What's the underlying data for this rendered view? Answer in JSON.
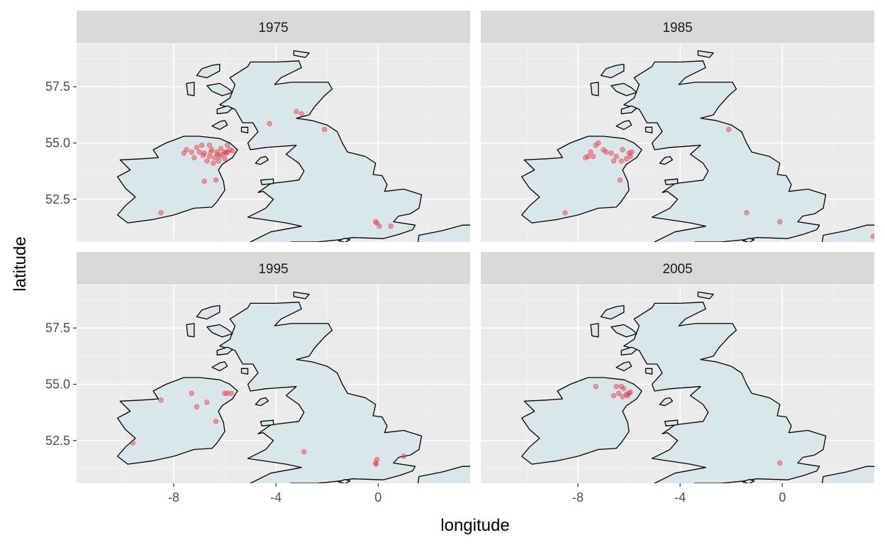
{
  "chart_data": {
    "type": "scatter",
    "facet_by": "year",
    "xlabel": "longitude",
    "ylabel": "latitude",
    "xlim": [
      -11.8,
      3.6
    ],
    "ylim": [
      50.6,
      59.4
    ],
    "xticks": [
      -8,
      -4,
      0
    ],
    "xtick_labels": [
      "-8",
      "-4",
      "0"
    ],
    "yticks": [
      52.5,
      55.0,
      57.5
    ],
    "ytick_labels": [
      "52.5",
      "55.0",
      "57.5"
    ],
    "grid": true,
    "point_color": "#e8333c",
    "panels": [
      {
        "label": "1975",
        "points": [
          [
            -6.5,
            54.7
          ],
          [
            -6.3,
            54.6
          ],
          [
            -6.0,
            54.6
          ],
          [
            -5.9,
            54.6
          ],
          [
            -5.95,
            54.55
          ],
          [
            -6.1,
            54.5
          ],
          [
            -6.2,
            54.4
          ],
          [
            -6.4,
            54.35
          ],
          [
            -6.6,
            54.4
          ],
          [
            -6.8,
            54.55
          ],
          [
            -7.0,
            54.6
          ],
          [
            -7.3,
            54.6
          ],
          [
            -7.5,
            54.7
          ],
          [
            -7.6,
            54.55
          ],
          [
            -7.1,
            54.8
          ],
          [
            -6.9,
            54.9
          ],
          [
            -6.6,
            54.9
          ],
          [
            -6.3,
            54.5
          ],
          [
            -6.7,
            54.2
          ],
          [
            -6.45,
            54.1
          ],
          [
            -6.25,
            54.2
          ],
          [
            -6.0,
            54.3
          ],
          [
            -5.8,
            54.7
          ],
          [
            -5.7,
            54.65
          ],
          [
            -6.55,
            54.6
          ],
          [
            -6.85,
            54.45
          ],
          [
            -7.2,
            54.35
          ],
          [
            -5.9,
            54.9
          ],
          [
            -6.15,
            54.75
          ],
          [
            -6.35,
            53.35
          ],
          [
            -6.8,
            53.3
          ],
          [
            -8.5,
            51.9
          ],
          [
            -4.25,
            55.86
          ],
          [
            -3.2,
            56.4
          ],
          [
            -3.0,
            56.3
          ],
          [
            -2.1,
            55.6
          ],
          [
            -0.1,
            51.5
          ],
          [
            -0.05,
            51.45
          ],
          [
            0.05,
            51.3
          ],
          [
            0.5,
            51.3
          ]
        ]
      },
      {
        "label": "1985",
        "points": [
          [
            -7.3,
            54.9
          ],
          [
            -7.2,
            55.0
          ],
          [
            -7.5,
            54.6
          ],
          [
            -7.6,
            54.4
          ],
          [
            -7.7,
            54.35
          ],
          [
            -6.9,
            54.6
          ],
          [
            -6.7,
            54.55
          ],
          [
            -6.5,
            54.4
          ],
          [
            -6.3,
            54.2
          ],
          [
            -6.1,
            54.3
          ],
          [
            -6.0,
            54.55
          ],
          [
            -5.9,
            54.6
          ],
          [
            -6.6,
            54.2
          ],
          [
            -7.0,
            54.7
          ],
          [
            -6.25,
            54.7
          ],
          [
            -7.4,
            54.4
          ],
          [
            -5.95,
            54.4
          ],
          [
            -6.35,
            53.35
          ],
          [
            -8.5,
            51.9
          ],
          [
            -2.1,
            55.6
          ],
          [
            -1.4,
            51.9
          ],
          [
            -0.1,
            51.5
          ],
          [
            3.55,
            50.85
          ]
        ]
      },
      {
        "label": "1995",
        "points": [
          [
            -5.9,
            54.6
          ],
          [
            -6.0,
            54.6
          ],
          [
            -5.75,
            54.6
          ],
          [
            -7.3,
            54.6
          ],
          [
            -6.7,
            54.2
          ],
          [
            -7.1,
            54.0
          ],
          [
            -8.5,
            54.3
          ],
          [
            -6.35,
            53.35
          ],
          [
            -9.6,
            52.4
          ],
          [
            -2.9,
            52.0
          ],
          [
            -0.05,
            51.65
          ],
          [
            -0.1,
            51.5
          ],
          [
            -0.08,
            51.45
          ],
          [
            1.0,
            51.8
          ]
        ]
      },
      {
        "label": "2005",
        "points": [
          [
            -6.5,
            54.9
          ],
          [
            -6.3,
            54.9
          ],
          [
            -6.2,
            54.8
          ],
          [
            -6.4,
            54.6
          ],
          [
            -6.1,
            54.55
          ],
          [
            -6.0,
            54.6
          ],
          [
            -5.95,
            54.65
          ],
          [
            -6.05,
            54.5
          ],
          [
            -6.25,
            54.45
          ],
          [
            -6.6,
            54.5
          ],
          [
            -7.3,
            54.9
          ],
          [
            -0.1,
            51.5
          ]
        ]
      }
    ]
  }
}
